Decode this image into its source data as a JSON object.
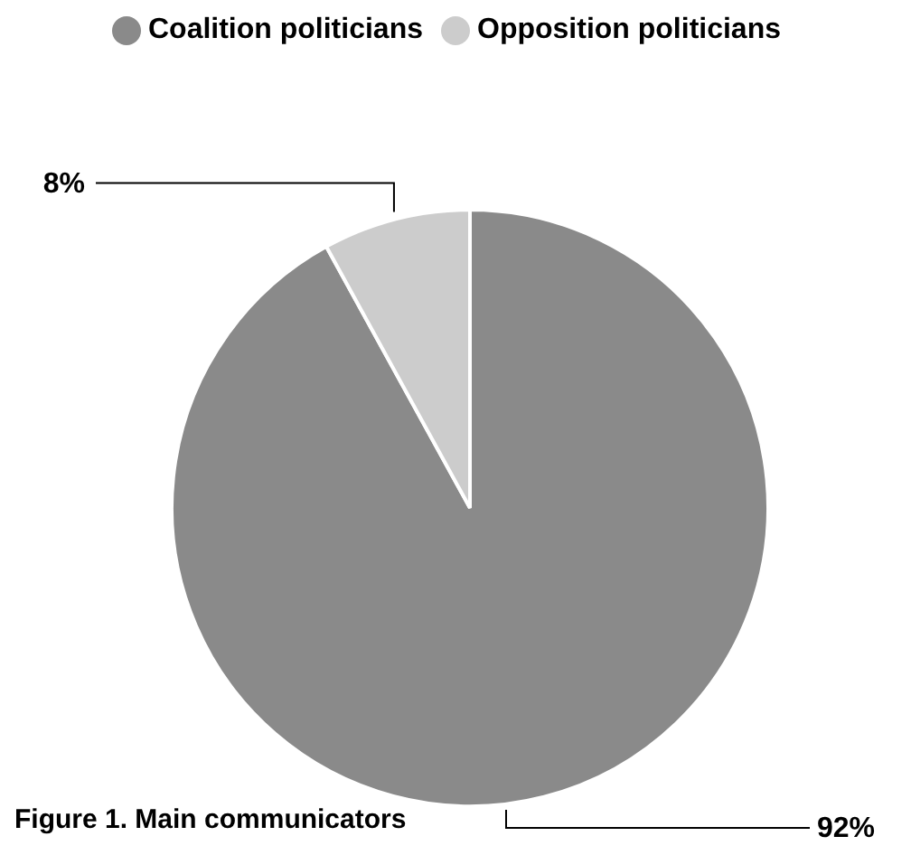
{
  "chart_data": {
    "type": "pie",
    "title": "Figure 1. Main communicators",
    "categories": [
      "Coalition politicians",
      "Opposition politicians"
    ],
    "values": [
      92,
      8
    ],
    "value_labels": [
      "92%",
      "8%"
    ],
    "colors": [
      "#8a8a8a",
      "#cccccc"
    ],
    "legend": "top"
  }
}
